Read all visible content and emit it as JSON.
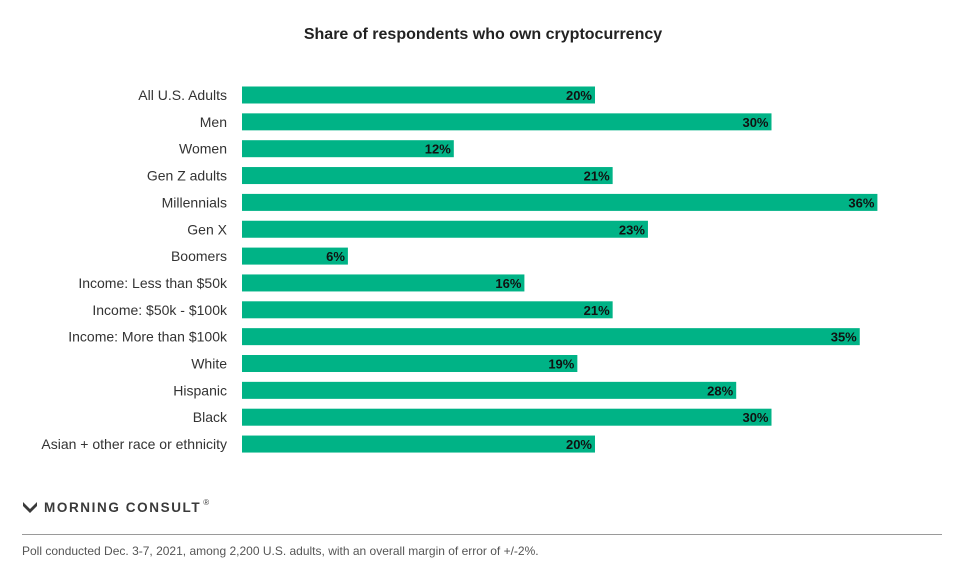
{
  "chart_data": {
    "type": "bar",
    "orientation": "horizontal",
    "title": "Share of respondents who own cryptocurrency",
    "categories": [
      "All U.S. Adults",
      "Men",
      "Women",
      "Gen Z adults",
      "Millennials",
      "Gen X",
      "Boomers",
      "Income: Less than $50k",
      "Income: $50k - $100k",
      "Income: More than $100k",
      "White",
      "Hispanic",
      "Black",
      "Asian + other race or ethnicity"
    ],
    "values": [
      20,
      30,
      12,
      21,
      36,
      23,
      6,
      16,
      21,
      35,
      19,
      28,
      30,
      20
    ],
    "value_labels": [
      "20%",
      "30%",
      "12%",
      "21%",
      "36%",
      "23%",
      "6%",
      "16%",
      "21%",
      "35%",
      "19%",
      "28%",
      "30%",
      "20%"
    ],
    "xlim": [
      0,
      36
    ],
    "bar_color": "#00b386",
    "grid": false,
    "legend": "none"
  },
  "brand": {
    "name": "MORNING CONSULT",
    "mark": "®",
    "logo_icon": "morning-consult-logo-icon",
    "logo_color": "#3a3a3a"
  },
  "footnote": "Poll conducted Dec. 3-7, 2021, among 2,200 U.S. adults, with an overall margin of error of +/-2%."
}
